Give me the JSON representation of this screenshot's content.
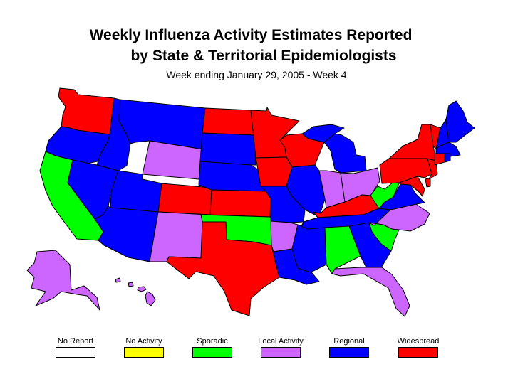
{
  "title_line1": "Weekly Influenza Activity Estimates Reported",
  "title_line2": "by State & Territorial Epidemiologists",
  "subtitle": "Week ending January 29, 2005 - Week 4",
  "colors": {
    "no_report": "#ffffff",
    "no_activity": "#ffff00",
    "sporadic": "#00ff00",
    "local": "#cc66ff",
    "regional": "#0000ff",
    "widespread": "#ff0000"
  },
  "legend": [
    {
      "key": "no_report",
      "label": "No Report"
    },
    {
      "key": "no_activity",
      "label": "No Activity"
    },
    {
      "key": "sporadic",
      "label": "Sporadic"
    },
    {
      "key": "local",
      "label": "Local Activity"
    },
    {
      "key": "regional",
      "label": "Regional"
    },
    {
      "key": "widespread",
      "label": "Widespread"
    }
  ],
  "states": {
    "WA": "widespread",
    "OR": "regional",
    "CA": "sporadic",
    "NV": "regional",
    "ID": "regional",
    "MT": "regional",
    "WY": "local",
    "UT": "regional",
    "AZ": "regional",
    "CO": "widespread",
    "NM": "local",
    "ND": "widespread",
    "SD": "regional",
    "NE": "regional",
    "KS": "widespread",
    "OK": "sporadic",
    "TX": "widespread",
    "MN": "widespread",
    "IA": "widespread",
    "MO": "regional",
    "AR": "local",
    "LA": "regional",
    "WI": "widespread",
    "IL": "regional",
    "MI": "regional",
    "IN": "local",
    "OH": "local",
    "KY": "widespread",
    "TN": "regional",
    "MS": "regional",
    "AL": "sporadic",
    "GA": "regional",
    "FL": "local",
    "SC": "sporadic",
    "NC": "local",
    "VA": "regional",
    "WV": "sporadic",
    "MD": "widespread",
    "DE": "widespread",
    "PA": "widespread",
    "NJ": "widespread",
    "NY": "widespread",
    "CT": "widespread",
    "RI": "regional",
    "MA": "regional",
    "VT": "widespread",
    "NH": "regional",
    "ME": "regional",
    "AK": "local",
    "HI": "local"
  }
}
